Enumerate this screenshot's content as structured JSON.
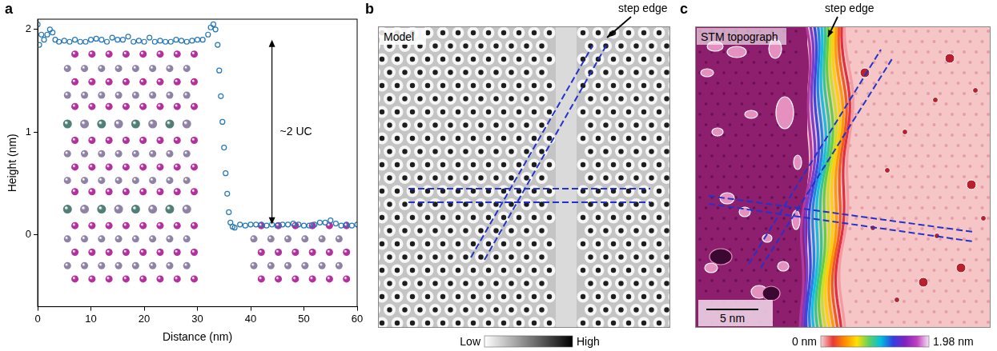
{
  "panel_labels": [
    "a",
    "b",
    "c"
  ],
  "chart_data": {
    "type": "scatter",
    "x_label": "Distance (nm)",
    "y_label": "Height (nm)",
    "x": [
      0,
      0.3,
      0.7,
      1.2,
      1.8,
      2.3,
      2.8,
      3.3,
      4,
      5,
      6,
      7,
      8,
      9,
      10,
      11,
      12,
      13,
      14,
      15,
      16,
      17,
      18,
      19,
      20,
      21,
      22,
      23,
      24,
      25,
      26,
      27,
      28,
      29,
      30,
      31,
      32,
      32.5,
      33,
      33.4,
      33.8,
      34.1,
      34.4,
      34.7,
      35,
      35.3,
      35.6,
      35.9,
      36.2,
      36.6,
      37,
      38,
      39,
      40,
      41,
      42,
      43,
      44,
      45,
      46,
      47,
      48,
      49,
      50,
      51,
      52,
      53,
      54,
      55,
      56,
      57,
      58,
      59,
      60
    ],
    "values": [
      2.05,
      1.85,
      1.95,
      1.9,
      1.95,
      2.0,
      1.97,
      1.9,
      1.88,
      1.89,
      1.88,
      1.9,
      1.88,
      1.88,
      1.9,
      1.91,
      1.9,
      1.88,
      1.92,
      1.9,
      1.9,
      1.93,
      1.88,
      1.89,
      1.88,
      1.92,
      1.88,
      1.89,
      1.88,
      1.88,
      1.9,
      1.89,
      1.88,
      1.89,
      1.9,
      1.9,
      1.95,
      2.02,
      2.05,
      2.0,
      1.85,
      1.6,
      1.35,
      1.1,
      0.85,
      0.6,
      0.4,
      0.22,
      0.12,
      0.08,
      0.07,
      0.1,
      0.09,
      0.1,
      0.1,
      0.1,
      0.09,
      0.1,
      0.09,
      0.1,
      0.1,
      0.11,
      0.1,
      0.09,
      0.09,
      0.1,
      0.12,
      0.12,
      0.14,
      0.11,
      0.09,
      0.1,
      0.09,
      0.1
    ],
    "color": "#2477b8",
    "marker": "circle_open",
    "line_style": "none",
    "xlim": [
      0,
      60
    ],
    "xticks": [
      0,
      10,
      20,
      30,
      40,
      50,
      60
    ],
    "ylim": [
      -0.7,
      2.1
    ],
    "yticks": [
      0,
      1,
      2
    ],
    "grid": false,
    "annotations": [
      {
        "text": "~2 UC",
        "x": 44,
        "y_from": 0.1,
        "y_to": 1.9
      }
    ]
  },
  "model_panel": {
    "title": "Model",
    "annotation": "step edge",
    "colorbar": {
      "low": "Low",
      "high": "High"
    }
  },
  "stm_panel": {
    "title": "STM topograph",
    "annotation": "step edge",
    "scale_bar": {
      "length": 5,
      "label": "5 nm"
    },
    "colorbar": {
      "range": [
        0,
        1.98
      ],
      "ticks": [
        {
          "value": 0,
          "label": "0 nm"
        },
        {
          "value": 1.98,
          "label": "1.98 nm"
        }
      ]
    }
  }
}
